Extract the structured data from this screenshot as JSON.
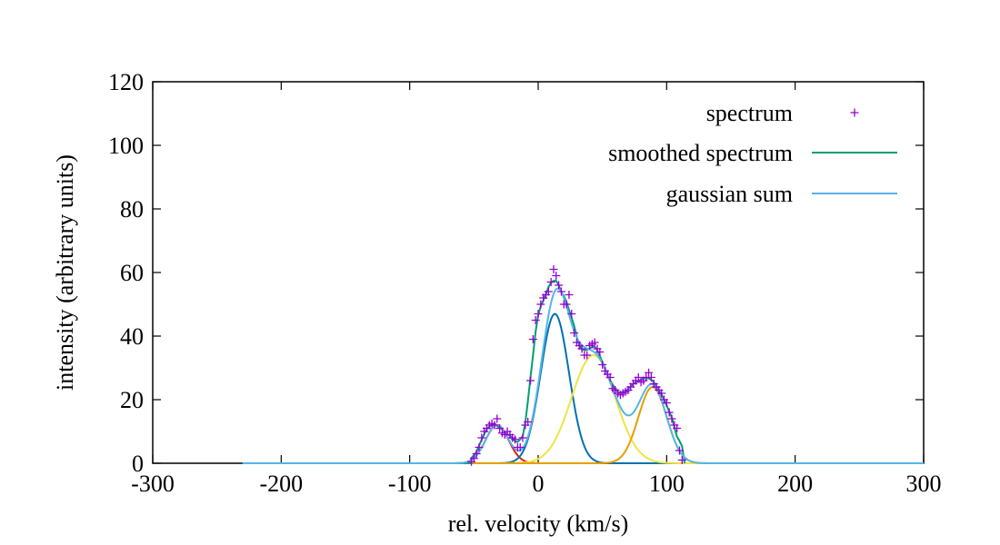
{
  "chart_data": {
    "type": "line",
    "xlabel": "rel. velocity (km/s)",
    "ylabel": "intensity (arbitrary units)",
    "xlim": [
      -300,
      300
    ],
    "ylim": [
      0,
      120
    ],
    "x_ticks": [
      "-300",
      "-200",
      "-100",
      "0",
      "100",
      "200",
      "300"
    ],
    "y_ticks": [
      "0",
      "20",
      "40",
      "60",
      "80",
      "100",
      "120"
    ],
    "grid": false,
    "legend_position": "top-right",
    "legend": [
      {
        "label": "spectrum",
        "color": "#9400d3",
        "style": "points"
      },
      {
        "label": "smoothed spectrum",
        "color": "#009e73",
        "style": "line"
      },
      {
        "label": "gaussian sum",
        "color": "#56b4e9",
        "style": "line"
      }
    ],
    "gaussian_components": [
      {
        "color": "#e51e10",
        "amplitude": 12,
        "center": -32,
        "sigma": 9
      },
      {
        "color": "#0072b2",
        "amplitude": 47,
        "center": 13,
        "sigma": 11
      },
      {
        "color": "#f0e442",
        "amplitude": 34,
        "center": 43,
        "sigma": 17
      },
      {
        "color": "#e69f00",
        "amplitude": 24,
        "center": 89,
        "sigma": 11
      }
    ],
    "spectrum_points": [
      [
        -52,
        0.5
      ],
      [
        -50,
        1.5
      ],
      [
        -48,
        3
      ],
      [
        -46,
        5
      ],
      [
        -44,
        8
      ],
      [
        -42,
        10
      ],
      [
        -40,
        11
      ],
      [
        -38,
        12
      ],
      [
        -36,
        12.5
      ],
      [
        -34,
        12
      ],
      [
        -32,
        14
      ],
      [
        -30,
        11
      ],
      [
        -28,
        9.5
      ],
      [
        -26,
        9
      ],
      [
        -24,
        10
      ],
      [
        -22,
        9
      ],
      [
        -20,
        8
      ],
      [
        -18,
        7.5
      ],
      [
        -16,
        5
      ],
      [
        -14,
        5
      ],
      [
        -12,
        8
      ],
      [
        -10,
        12
      ],
      [
        -8,
        13
      ],
      [
        -6,
        26
      ],
      [
        -4,
        39
      ],
      [
        -2,
        45
      ],
      [
        0,
        47
      ],
      [
        2,
        50
      ],
      [
        4,
        52
      ],
      [
        6,
        53
      ],
      [
        8,
        54
      ],
      [
        10,
        57
      ],
      [
        12,
        61
      ],
      [
        14,
        59
      ],
      [
        16,
        56
      ],
      [
        18,
        54
      ],
      [
        20,
        50
      ],
      [
        22,
        50
      ],
      [
        24,
        53
      ],
      [
        26,
        47
      ],
      [
        28,
        41
      ],
      [
        30,
        38
      ],
      [
        32,
        37
      ],
      [
        34,
        36
      ],
      [
        36,
        34
      ],
      [
        38,
        34
      ],
      [
        40,
        37
      ],
      [
        42,
        37.5
      ],
      [
        44,
        38
      ],
      [
        46,
        36
      ],
      [
        48,
        35
      ],
      [
        50,
        31
      ],
      [
        52,
        29
      ],
      [
        54,
        28
      ],
      [
        56,
        27
      ],
      [
        58,
        23.5
      ],
      [
        60,
        23
      ],
      [
        62,
        22
      ],
      [
        64,
        21.5
      ],
      [
        66,
        22
      ],
      [
        68,
        22.5
      ],
      [
        70,
        23
      ],
      [
        72,
        24
      ],
      [
        74,
        25
      ],
      [
        76,
        26
      ],
      [
        78,
        27
      ],
      [
        80,
        25.5
      ],
      [
        82,
        26
      ],
      [
        84,
        27
      ],
      [
        86,
        28.5
      ],
      [
        88,
        27
      ],
      [
        90,
        25
      ],
      [
        92,
        24
      ],
      [
        94,
        23
      ],
      [
        96,
        22
      ],
      [
        98,
        20
      ],
      [
        100,
        19
      ],
      [
        102,
        16
      ],
      [
        104,
        14
      ],
      [
        106,
        12
      ],
      [
        108,
        11
      ],
      [
        110,
        4
      ],
      [
        112,
        1
      ]
    ]
  }
}
